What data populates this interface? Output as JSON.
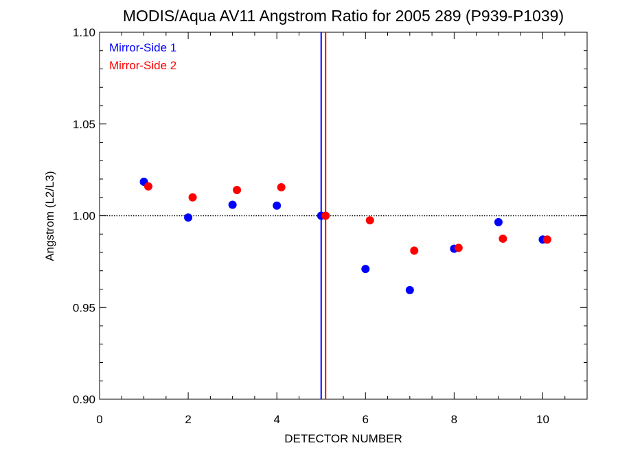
{
  "chart_data": {
    "type": "scatter",
    "title": "MODIS/Aqua AV11 Angstrom Ratio for 2005 289 (P939-P1039)",
    "xlabel": "DETECTOR NUMBER",
    "ylabel": "Angstrom (L2/L3)",
    "xlim": [
      0,
      11
    ],
    "ylim": [
      0.9,
      1.1
    ],
    "x_ticks": [
      0,
      2,
      4,
      6,
      8,
      10
    ],
    "x_tick_labels": [
      "0",
      "2",
      "4",
      "6",
      "8",
      "10"
    ],
    "y_ticks": [
      0.9,
      0.95,
      1.0,
      1.05,
      1.1
    ],
    "y_tick_labels": [
      "0.90",
      "0.95",
      "1.00",
      "1.05",
      "1.10"
    ],
    "reference_line_y": 1.0,
    "grid": false,
    "legend_position": "top-left",
    "series": [
      {
        "name": "Mirror-Side 1",
        "color": "#0000ff",
        "x": [
          1,
          2,
          3,
          4,
          5,
          6,
          7,
          8,
          9,
          10
        ],
        "y": [
          1.0185,
          0.999,
          1.006,
          1.0055,
          1.0,
          0.971,
          0.9595,
          0.982,
          0.9965,
          0.987
        ],
        "vertical_marker_x": 5.0
      },
      {
        "name": "Mirror-Side 2",
        "color": "#ff0000",
        "x": [
          1.1,
          2.1,
          3.1,
          4.1,
          5.1,
          6.1,
          7.1,
          8.1,
          9.1,
          10.1
        ],
        "y": [
          1.016,
          1.01,
          1.014,
          1.0155,
          1.0,
          0.9975,
          0.981,
          0.9825,
          0.9875,
          0.987
        ],
        "vertical_marker_x": 5.1
      }
    ]
  }
}
